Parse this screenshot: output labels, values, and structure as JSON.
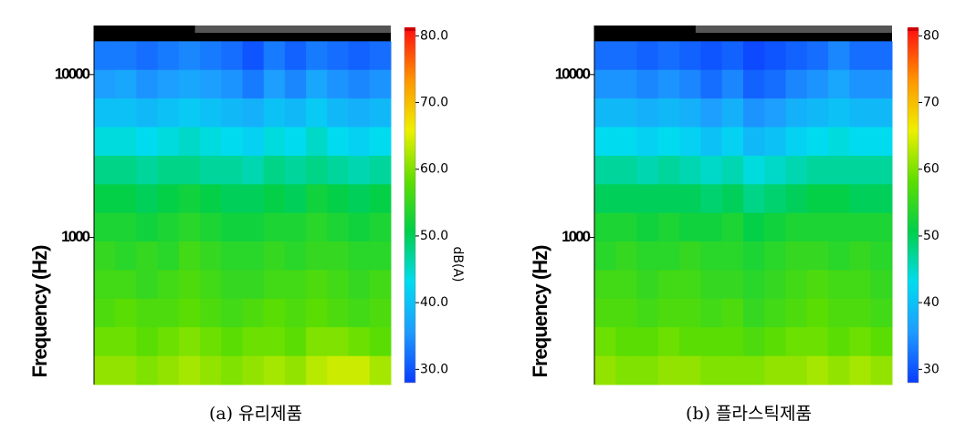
{
  "chart_data": [
    {
      "type": "heatmap",
      "caption": "(a)  유리제품",
      "ylabel": "Frequency (Hz)",
      "colorbar_label": "dB(A)",
      "ybins": [
        125,
        187,
        281,
        420,
        630,
        945,
        1414,
        2120,
        3175,
        4760,
        7130,
        10680,
        16000
      ],
      "ylim": [
        125,
        20000
      ],
      "yscale": "log",
      "yticks": [
        1000,
        10000
      ],
      "clim": [
        28,
        81
      ],
      "cticks": [
        {
          "value": 30,
          "label": "30.0"
        },
        {
          "value": 40,
          "label": "40.0"
        },
        {
          "value": 50,
          "label": "50.0"
        },
        {
          "value": 60,
          "label": "60.0"
        },
        {
          "value": 70,
          "label": "70.0"
        },
        {
          "value": 80,
          "label": "80.0"
        }
      ],
      "colormap": [
        "#0a3cff",
        "#1e9bff",
        "#00dcf0",
        "#00cf4a",
        "#5ede00",
        "#eef000",
        "#ff9400",
        "#ff1010"
      ],
      "values": [
        [
          33,
          33,
          32,
          33,
          34,
          33,
          32,
          30,
          33,
          31,
          33,
          32,
          31,
          32
        ],
        [
          36,
          37,
          35,
          36,
          37,
          36,
          35,
          33,
          36,
          34,
          37,
          35,
          34,
          35
        ],
        [
          40,
          40,
          39,
          40,
          41,
          40,
          39,
          38,
          40,
          39,
          41,
          39,
          38,
          39
        ],
        [
          44,
          44,
          43,
          44,
          45,
          44,
          43,
          42,
          44,
          43,
          45,
          43,
          42,
          43
        ],
        [
          48,
          48,
          47,
          48,
          48,
          47,
          47,
          46,
          48,
          47,
          48,
          47,
          46,
          47
        ],
        [
          51,
          51,
          50,
          51,
          52,
          51,
          50,
          50,
          51,
          50,
          52,
          51,
          50,
          51
        ],
        [
          53,
          53,
          52,
          53,
          54,
          53,
          52,
          52,
          53,
          53,
          54,
          53,
          52,
          53
        ],
        [
          55,
          54,
          55,
          54,
          56,
          55,
          54,
          54,
          55,
          54,
          55,
          55,
          54,
          54
        ],
        [
          56,
          56,
          55,
          56,
          57,
          56,
          55,
          55,
          56,
          56,
          57,
          56,
          55,
          56
        ],
        [
          57,
          58,
          57,
          57,
          58,
          57,
          56,
          57,
          58,
          57,
          58,
          57,
          56,
          57
        ],
        [
          59,
          59,
          58,
          59,
          60,
          59,
          58,
          59,
          59,
          58,
          60,
          60,
          59,
          58
        ],
        [
          61,
          61,
          60,
          61,
          62,
          61,
          60,
          61,
          62,
          61,
          63,
          64,
          64,
          62
        ]
      ]
    },
    {
      "type": "heatmap",
      "caption": "(b)  플라스틱제품",
      "ylabel": "Frequency (Hz)",
      "ybins": [
        125,
        187,
        281,
        420,
        630,
        945,
        1414,
        2120,
        3175,
        4760,
        7130,
        10680,
        16000
      ],
      "ylim": [
        125,
        20000
      ],
      "yscale": "log",
      "yticks": [
        1000,
        10000
      ],
      "clim": [
        28,
        81
      ],
      "cticks": [
        30,
        40,
        50,
        60,
        70,
        80
      ],
      "colormap": [
        "#0a3cff",
        "#1e9bff",
        "#00dcf0",
        "#00cf4a",
        "#5ede00",
        "#eef000",
        "#ff9400",
        "#ff1010"
      ],
      "values": [
        [
          32,
          32,
          31,
          32,
          31,
          30,
          31,
          29,
          30,
          31,
          32,
          34,
          32,
          32
        ],
        [
          35,
          35,
          34,
          35,
          34,
          32,
          34,
          31,
          32,
          34,
          35,
          37,
          35,
          35
        ],
        [
          39,
          39,
          38,
          39,
          38,
          36,
          38,
          35,
          36,
          38,
          39,
          40,
          39,
          39
        ],
        [
          43,
          43,
          42,
          43,
          42,
          40,
          42,
          39,
          40,
          42,
          43,
          44,
          43,
          43
        ],
        [
          47,
          47,
          46,
          47,
          46,
          45,
          46,
          44,
          45,
          46,
          47,
          47,
          47,
          47
        ],
        [
          50,
          50,
          50,
          50,
          50,
          49,
          50,
          48,
          49,
          50,
          51,
          51,
          50,
          50
        ],
        [
          53,
          53,
          52,
          53,
          52,
          52,
          53,
          51,
          52,
          53,
          53,
          53,
          53,
          53
        ],
        [
          54,
          55,
          54,
          54,
          55,
          54,
          54,
          53,
          54,
          55,
          55,
          54,
          55,
          54
        ],
        [
          56,
          56,
          55,
          56,
          56,
          55,
          55,
          54,
          55,
          56,
          57,
          56,
          56,
          55
        ],
        [
          57,
          57,
          56,
          57,
          57,
          56,
          57,
          55,
          56,
          57,
          58,
          57,
          57,
          56
        ],
        [
          59,
          58,
          58,
          59,
          58,
          58,
          58,
          57,
          58,
          59,
          59,
          58,
          59,
          58
        ],
        [
          61,
          60,
          60,
          61,
          61,
          60,
          60,
          60,
          61,
          61,
          62,
          61,
          62,
          61
        ]
      ]
    }
  ]
}
